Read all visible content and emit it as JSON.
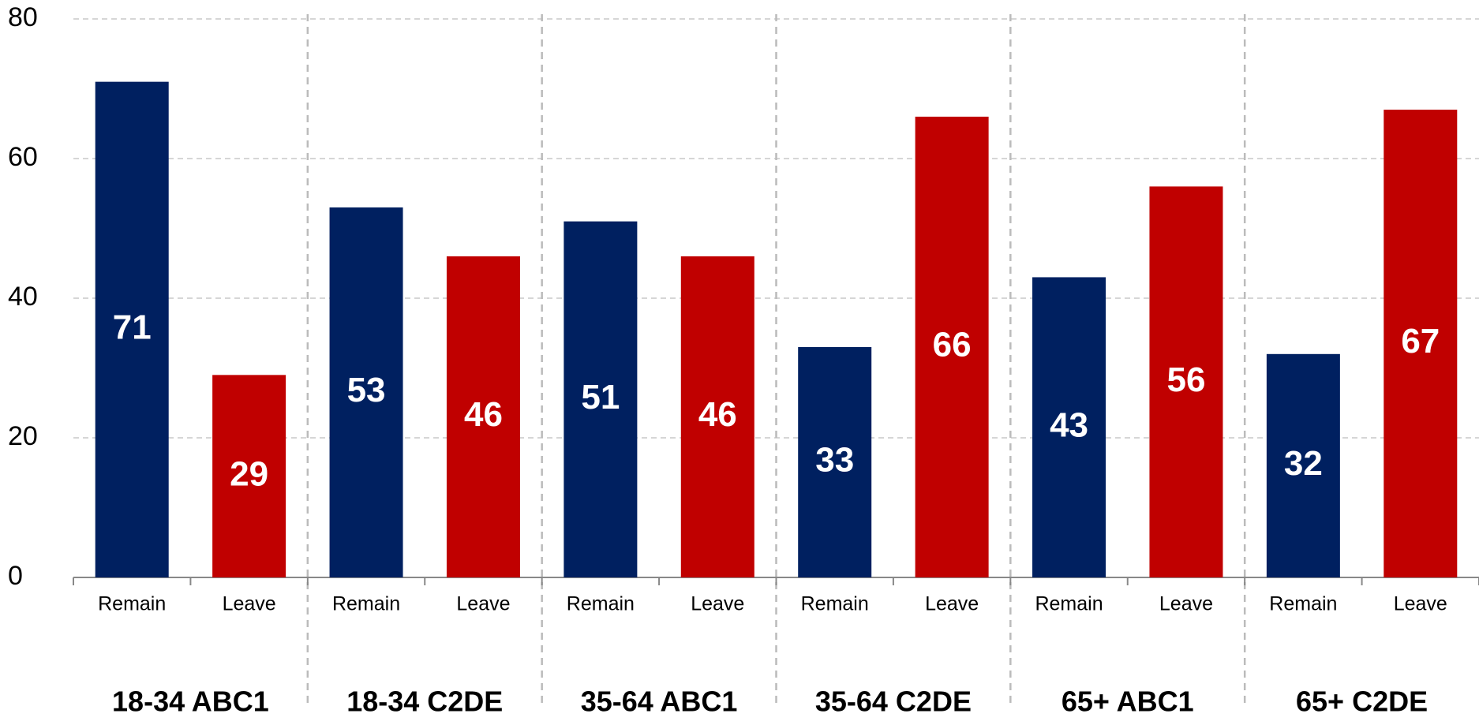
{
  "chart_data": {
    "type": "bar",
    "categories": [
      "18-34 ABC1",
      "18-34 C2DE",
      "35-64 ABC1",
      "35-64 C2DE",
      "65+ ABC1",
      "65+ C2DE"
    ],
    "series": [
      {
        "name": "Remain",
        "color": "#002060",
        "values": [
          71,
          53,
          51,
          33,
          43,
          32
        ]
      },
      {
        "name": "Leave",
        "color": "#c00000",
        "values": [
          29,
          46,
          46,
          66,
          56,
          67
        ]
      }
    ],
    "ylim": [
      0,
      80
    ],
    "yticks": [
      0,
      20,
      40,
      60,
      80
    ],
    "grid": true
  }
}
